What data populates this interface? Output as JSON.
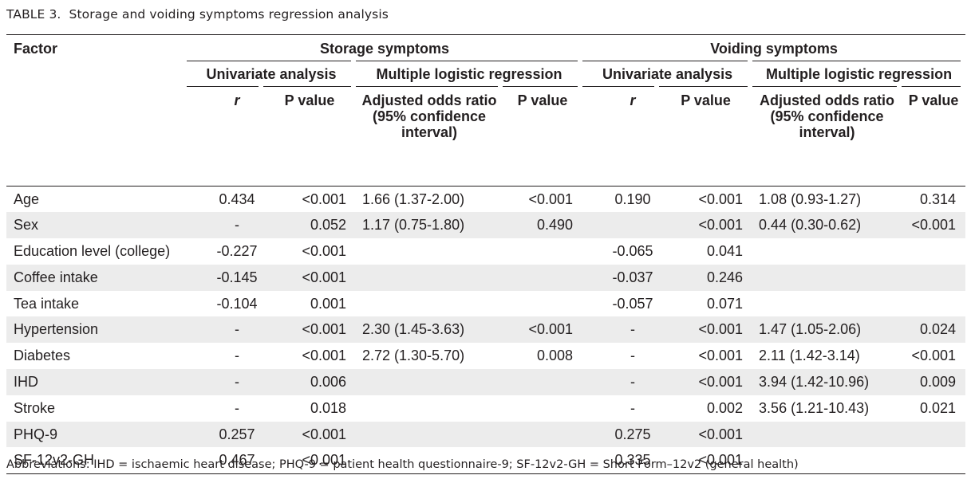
{
  "caption": {
    "label": "TABLE 3.",
    "title": "Storage and voiding symptoms regression analysis"
  },
  "headers": {
    "factor": "Factor",
    "storage": "Storage symptoms",
    "voiding": "Voiding symptoms",
    "univariate": "Univariate analysis",
    "multiple": "Multiple logistic regression",
    "r": "r",
    "p_value": "P value",
    "adjusted_or": "Adjusted odds ratio (95% confidence interval)"
  },
  "rows": [
    {
      "factor": "Age",
      "s_r": "0.434",
      "s_p": "<0.001",
      "s_or": "1.66 (1.37-2.00)",
      "s_orp": "<0.001",
      "v_r": "0.190",
      "v_p": "<0.001",
      "v_or": "1.08 (0.93-1.27)",
      "v_orp": "0.314"
    },
    {
      "factor": "Sex",
      "s_r": "-",
      "s_p": "0.052",
      "s_or": "1.17 (0.75-1.80)",
      "s_orp": "0.490",
      "v_r": "",
      "v_p": "<0.001",
      "v_or": "0.44 (0.30-0.62)",
      "v_orp": "<0.001"
    },
    {
      "factor": "Education level (college)",
      "s_r": "-0.227",
      "s_p": "<0.001",
      "s_or": "",
      "s_orp": "",
      "v_r": "-0.065",
      "v_p": "0.041",
      "v_or": "",
      "v_orp": ""
    },
    {
      "factor": "Coffee intake",
      "s_r": "-0.145",
      "s_p": "<0.001",
      "s_or": "",
      "s_orp": "",
      "v_r": "-0.037",
      "v_p": "0.246",
      "v_or": "",
      "v_orp": ""
    },
    {
      "factor": "Tea intake",
      "s_r": "-0.104",
      "s_p": "0.001",
      "s_or": "",
      "s_orp": "",
      "v_r": "-0.057",
      "v_p": "0.071",
      "v_or": "",
      "v_orp": ""
    },
    {
      "factor": "Hypertension",
      "s_r": "-",
      "s_p": "<0.001",
      "s_or": "2.30 (1.45-3.63)",
      "s_orp": "<0.001",
      "v_r": "-",
      "v_p": "<0.001",
      "v_or": "1.47 (1.05-2.06)",
      "v_orp": "0.024"
    },
    {
      "factor": "Diabetes",
      "s_r": "-",
      "s_p": "<0.001",
      "s_or": "2.72 (1.30-5.70)",
      "s_orp": "0.008",
      "v_r": "-",
      "v_p": "<0.001",
      "v_or": "2.11 (1.42-3.14)",
      "v_orp": "<0.001"
    },
    {
      "factor": "IHD",
      "s_r": "-",
      "s_p": "0.006",
      "s_or": "",
      "s_orp": "",
      "v_r": "-",
      "v_p": "<0.001",
      "v_or": "3.94 (1.42-10.96)",
      "v_orp": "0.009"
    },
    {
      "factor": "Stroke",
      "s_r": "-",
      "s_p": "0.018",
      "s_or": "",
      "s_orp": "",
      "v_r": "-",
      "v_p": "0.002",
      "v_or": "3.56 (1.21-10.43)",
      "v_orp": "0.021"
    },
    {
      "factor": "PHQ-9",
      "s_r": "0.257",
      "s_p": "<0.001",
      "s_or": "",
      "s_orp": "",
      "v_r": "0.275",
      "v_p": "<0.001",
      "v_or": "",
      "v_orp": ""
    },
    {
      "factor": "SF-12v2-GH",
      "s_r": "0.467",
      "s_p": "<0.001",
      "s_or": "",
      "s_orp": "",
      "v_r": "0.335",
      "v_p": "<0.001",
      "v_or": "",
      "v_orp": ""
    }
  ],
  "footnote": "Abbreviations: IHD = ischaemic heart disease; PHQ-9 = patient health questionnaire-9; SF-12v2-GH = Short Form–12v2 (general health)"
}
